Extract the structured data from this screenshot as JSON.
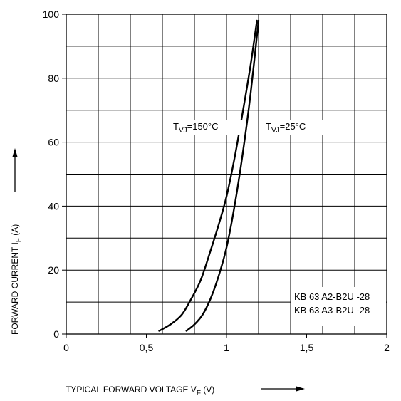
{
  "chart_data": {
    "type": "line",
    "xlabel": {
      "main": "TYPICAL FORWARD VOLTAGE V",
      "sub": "F",
      "unit": " (V)"
    },
    "ylabel": {
      "main": "FORWARD CURRENT I",
      "sub": "F",
      "unit": " (A)"
    },
    "xlim": [
      0,
      2
    ],
    "ylim": [
      0,
      100
    ],
    "x_ticks": [
      0,
      0.5,
      1,
      1.5,
      2
    ],
    "x_tick_labels": [
      "0",
      "0,5",
      "1",
      "1,5",
      "2"
    ],
    "y_ticks": [
      0,
      20,
      40,
      60,
      80,
      100
    ],
    "y_tick_labels": [
      "0",
      "20",
      "40",
      "60",
      "80",
      "100"
    ],
    "grid": true,
    "series": [
      {
        "name": "T_VJ=150°C",
        "label": {
          "main": "T",
          "sub": "VJ",
          "rest": "=150°C"
        },
        "color": "#000000",
        "x": [
          0.58,
          0.65,
          0.72,
          0.78,
          0.84,
          0.9,
          0.95,
          1.0,
          1.05,
          1.1,
          1.15,
          1.19
        ],
        "y": [
          1,
          3,
          6,
          11,
          17,
          26,
          34,
          43,
          55,
          69,
          84,
          98
        ]
      },
      {
        "name": "T_VJ=25°C",
        "label": {
          "main": "T",
          "sub": "VJ",
          "rest": "=25°C"
        },
        "color": "#000000",
        "x": [
          0.75,
          0.8,
          0.85,
          0.9,
          0.95,
          1.0,
          1.05,
          1.1,
          1.15,
          1.2
        ],
        "y": [
          1,
          3,
          6,
          11,
          18,
          27,
          40,
          56,
          75,
          98
        ]
      }
    ],
    "legend": {
      "lines": [
        "KB 63 A2-B2U  -28",
        "KB 63 A3-B2U  -28"
      ],
      "placement": "bottom-right"
    }
  }
}
